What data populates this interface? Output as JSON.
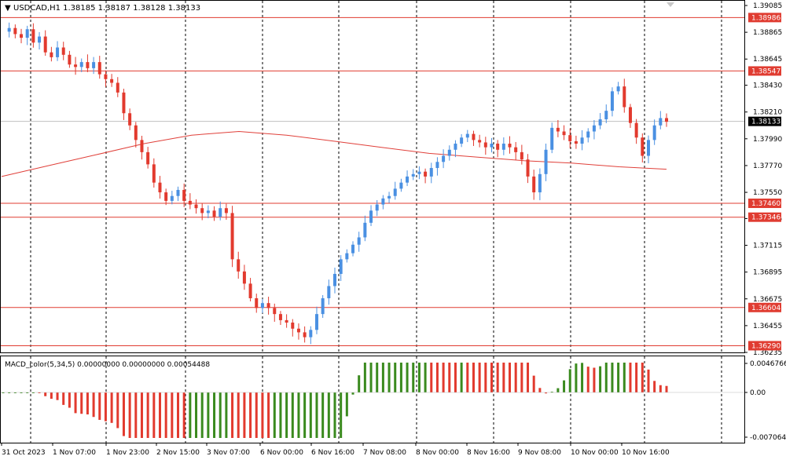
{
  "header": {
    "symbol_line": "USDCAD,H1  1.38185  1.38187  1.38128  1.38133"
  },
  "macd_header": "MACD_color(5,34,5) 0.00000000 0.00000000 0.00054488",
  "price_axis": {
    "ticks": [
      "1.39085",
      "1.38865",
      "1.38645",
      "1.38430",
      "1.38210",
      "1.37990",
      "1.37770",
      "1.37550",
      "1.37335",
      "1.37115",
      "1.36895",
      "1.36675",
      "1.36455",
      "1.36235"
    ],
    "current_price": "1.38133"
  },
  "level_lines": [
    {
      "label": "1.38986",
      "value": 1.38986
    },
    {
      "label": "1.38547",
      "value": 1.38547
    },
    {
      "label": "1.37460",
      "value": 1.3746
    },
    {
      "label": "1.37346",
      "value": 1.37346
    },
    {
      "label": "1.36604",
      "value": 1.36604
    },
    {
      "label": "1.36290",
      "value": 1.3629
    }
  ],
  "macd_axis": {
    "ticks": [
      "0.0046766",
      "0.00",
      "-0.0070646"
    ]
  },
  "time_axis": {
    "labels": [
      "31 Oct 2023",
      "1 Nov 07:00",
      "1 Nov 23:00",
      "2 Nov 15:00",
      "3 Nov 07:00",
      "6 Nov 00:00",
      "6 Nov 16:00",
      "7 Nov 08:00",
      "8 Nov 00:00",
      "8 Nov 16:00",
      "9 Nov 08:00",
      "10 Nov 00:00",
      "10 Nov 16:00"
    ]
  },
  "colors": {
    "bull": "#4a90e2",
    "bear": "#e23a2e",
    "level": "#e03c31",
    "ma": "#e0403a",
    "macd_pos_up": "#3a8a1e",
    "macd_pos_dn": "#e23a2e"
  },
  "chart_data": {
    "type": "candlestick",
    "symbol": "USDCAD",
    "timeframe": "H1",
    "ylim": [
      1.3621,
      1.3912
    ],
    "close_path": [
      1.3887,
      1.389,
      1.3885,
      1.3882,
      1.3889,
      1.3878,
      1.3883,
      1.387,
      1.3866,
      1.3874,
      1.3868,
      1.386,
      1.3858,
      1.3862,
      1.3857,
      1.3862,
      1.3852,
      1.3848,
      1.3845,
      1.3837,
      1.382,
      1.381,
      1.3798,
      1.3788,
      1.3778,
      1.3763,
      1.3755,
      1.3748,
      1.3752,
      1.3757,
      1.3748,
      1.3745,
      1.3742,
      1.3738,
      1.374,
      1.3735,
      1.3742,
      1.3738,
      1.37,
      1.369,
      1.368,
      1.3668,
      1.366,
      1.3664,
      1.366,
      1.3655,
      1.365,
      1.3648,
      1.3643,
      1.364,
      1.3636,
      1.3642,
      1.3655,
      1.3668,
      1.3678,
      1.3688,
      1.37,
      1.3705,
      1.3712,
      1.3718,
      1.373,
      1.374,
      1.3745,
      1.375,
      1.3752,
      1.3758,
      1.3763,
      1.3768,
      1.377,
      1.3772,
      1.3768,
      1.3775,
      1.378,
      1.3785,
      1.379,
      1.3795,
      1.38,
      1.3803,
      1.3798,
      1.3796,
      1.3792,
      1.3795,
      1.379,
      1.3795,
      1.3792,
      1.3788,
      1.3782,
      1.3768,
      1.3755,
      1.377,
      1.379,
      1.3808,
      1.3805,
      1.3802,
      1.3797,
      1.3795,
      1.38,
      1.3805,
      1.381,
      1.3815,
      1.3822,
      1.3838,
      1.3842,
      1.3825,
      1.3812,
      1.38,
      1.3785,
      1.3798,
      1.381,
      1.3816,
      1.3813
    ],
    "moving_average": [
      1.3768,
      1.3777,
      1.3786,
      1.3795,
      1.3802,
      1.3805,
      1.3802,
      1.3797,
      1.3792,
      1.3787,
      1.3784,
      1.3781,
      1.3779,
      1.3776,
      1.3774
    ]
  }
}
